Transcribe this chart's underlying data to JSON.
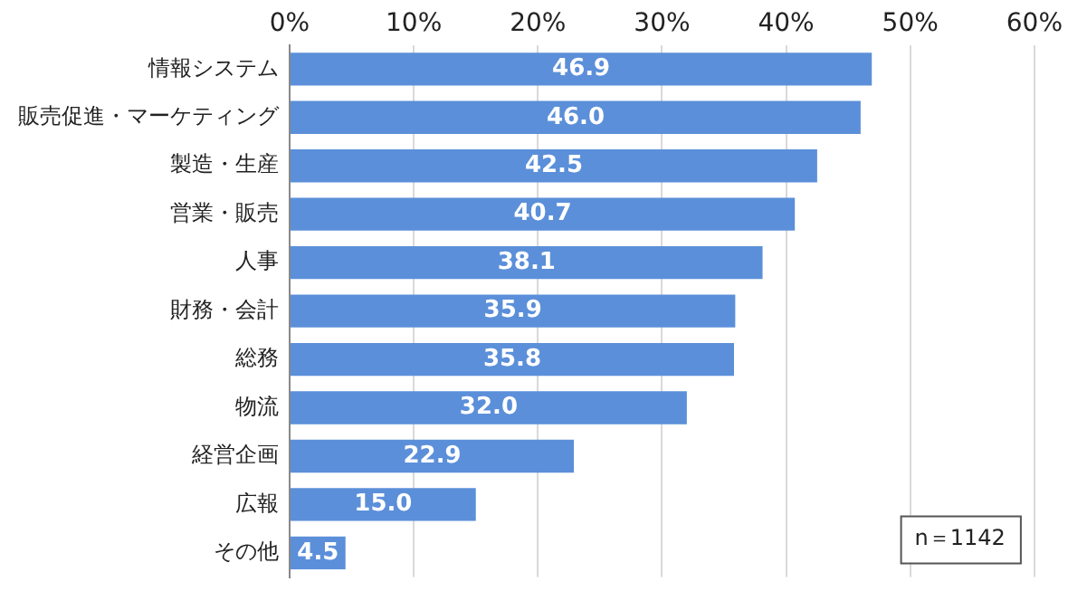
{
  "chart_data": {
    "type": "bar",
    "orientation": "horizontal",
    "categories": [
      "情報システム",
      "販売促進・マーケティング",
      "製造・生産",
      "営業・販売",
      "人事",
      "財務・会計",
      "総務",
      "物流",
      "経営企画",
      "広報",
      "その他"
    ],
    "values": [
      46.9,
      46.0,
      42.5,
      40.7,
      38.1,
      35.9,
      35.8,
      32.0,
      22.9,
      15.0,
      4.5
    ],
    "value_labels": [
      "46.9",
      "46.0",
      "42.5",
      "40.7",
      "38.1",
      "35.9",
      "35.8",
      "32.0",
      "22.9",
      "15.0",
      "4.5"
    ],
    "color": "#5b8fd9",
    "xlim": [
      0,
      60
    ],
    "xticks": [
      {
        "value": 0,
        "label": "0%"
      },
      {
        "value": 10,
        "label": "10%"
      },
      {
        "value": 20,
        "label": "20%"
      },
      {
        "value": 30,
        "label": "30%"
      },
      {
        "value": 40,
        "label": "40%"
      },
      {
        "value": 50,
        "label": "50%"
      },
      {
        "value": 60,
        "label": "60%"
      }
    ],
    "grid": "x",
    "legend": false,
    "annotations": [
      "n＝1142"
    ]
  }
}
